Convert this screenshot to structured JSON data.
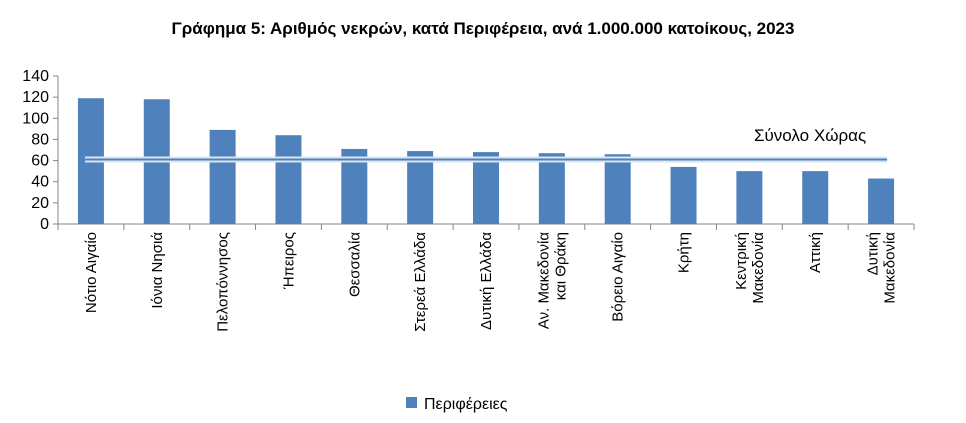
{
  "chart_data": {
    "type": "bar",
    "title": "Γράφημα 5: Αριθμός νεκρών, κατά Περιφέρεια, ανά 1.000.000 κατοίκους, 2023",
    "categories": [
      [
        "Νότιο Αιγαίο"
      ],
      [
        "Ιόνια Νησιά"
      ],
      [
        "Πελοπόννησος"
      ],
      [
        "Ήπειρος"
      ],
      [
        "Θεσσαλία"
      ],
      [
        "Στερεά Ελλάδα"
      ],
      [
        "Δυτική Ελλάδα"
      ],
      [
        "Αν. Μακεδονία",
        "και Θράκη"
      ],
      [
        "Βόρειο Αιγαίο"
      ],
      [
        "Κρήτη"
      ],
      [
        "Κεντρική",
        "Μακεδονία"
      ],
      [
        "Αττική"
      ],
      [
        "Δυτική",
        "Μακεδονία"
      ]
    ],
    "series": [
      {
        "name": "Περιφέρειες",
        "values": [
          119,
          118,
          89,
          84,
          71,
          69,
          68,
          67,
          66,
          54,
          50,
          50,
          43
        ]
      }
    ],
    "reference_line": {
      "label": "Σύνολο Χώρας",
      "value": 61
    },
    "ylim": [
      0,
      140
    ],
    "yticks": [
      0,
      20,
      40,
      60,
      80,
      100,
      120,
      140
    ],
    "grid": false,
    "legend_position": "bottom",
    "colors": {
      "bar": "#4f81bd",
      "reference_line": "#4f81bd",
      "reference_line_glow": "#dbe5f1",
      "axis": "#868686"
    }
  }
}
